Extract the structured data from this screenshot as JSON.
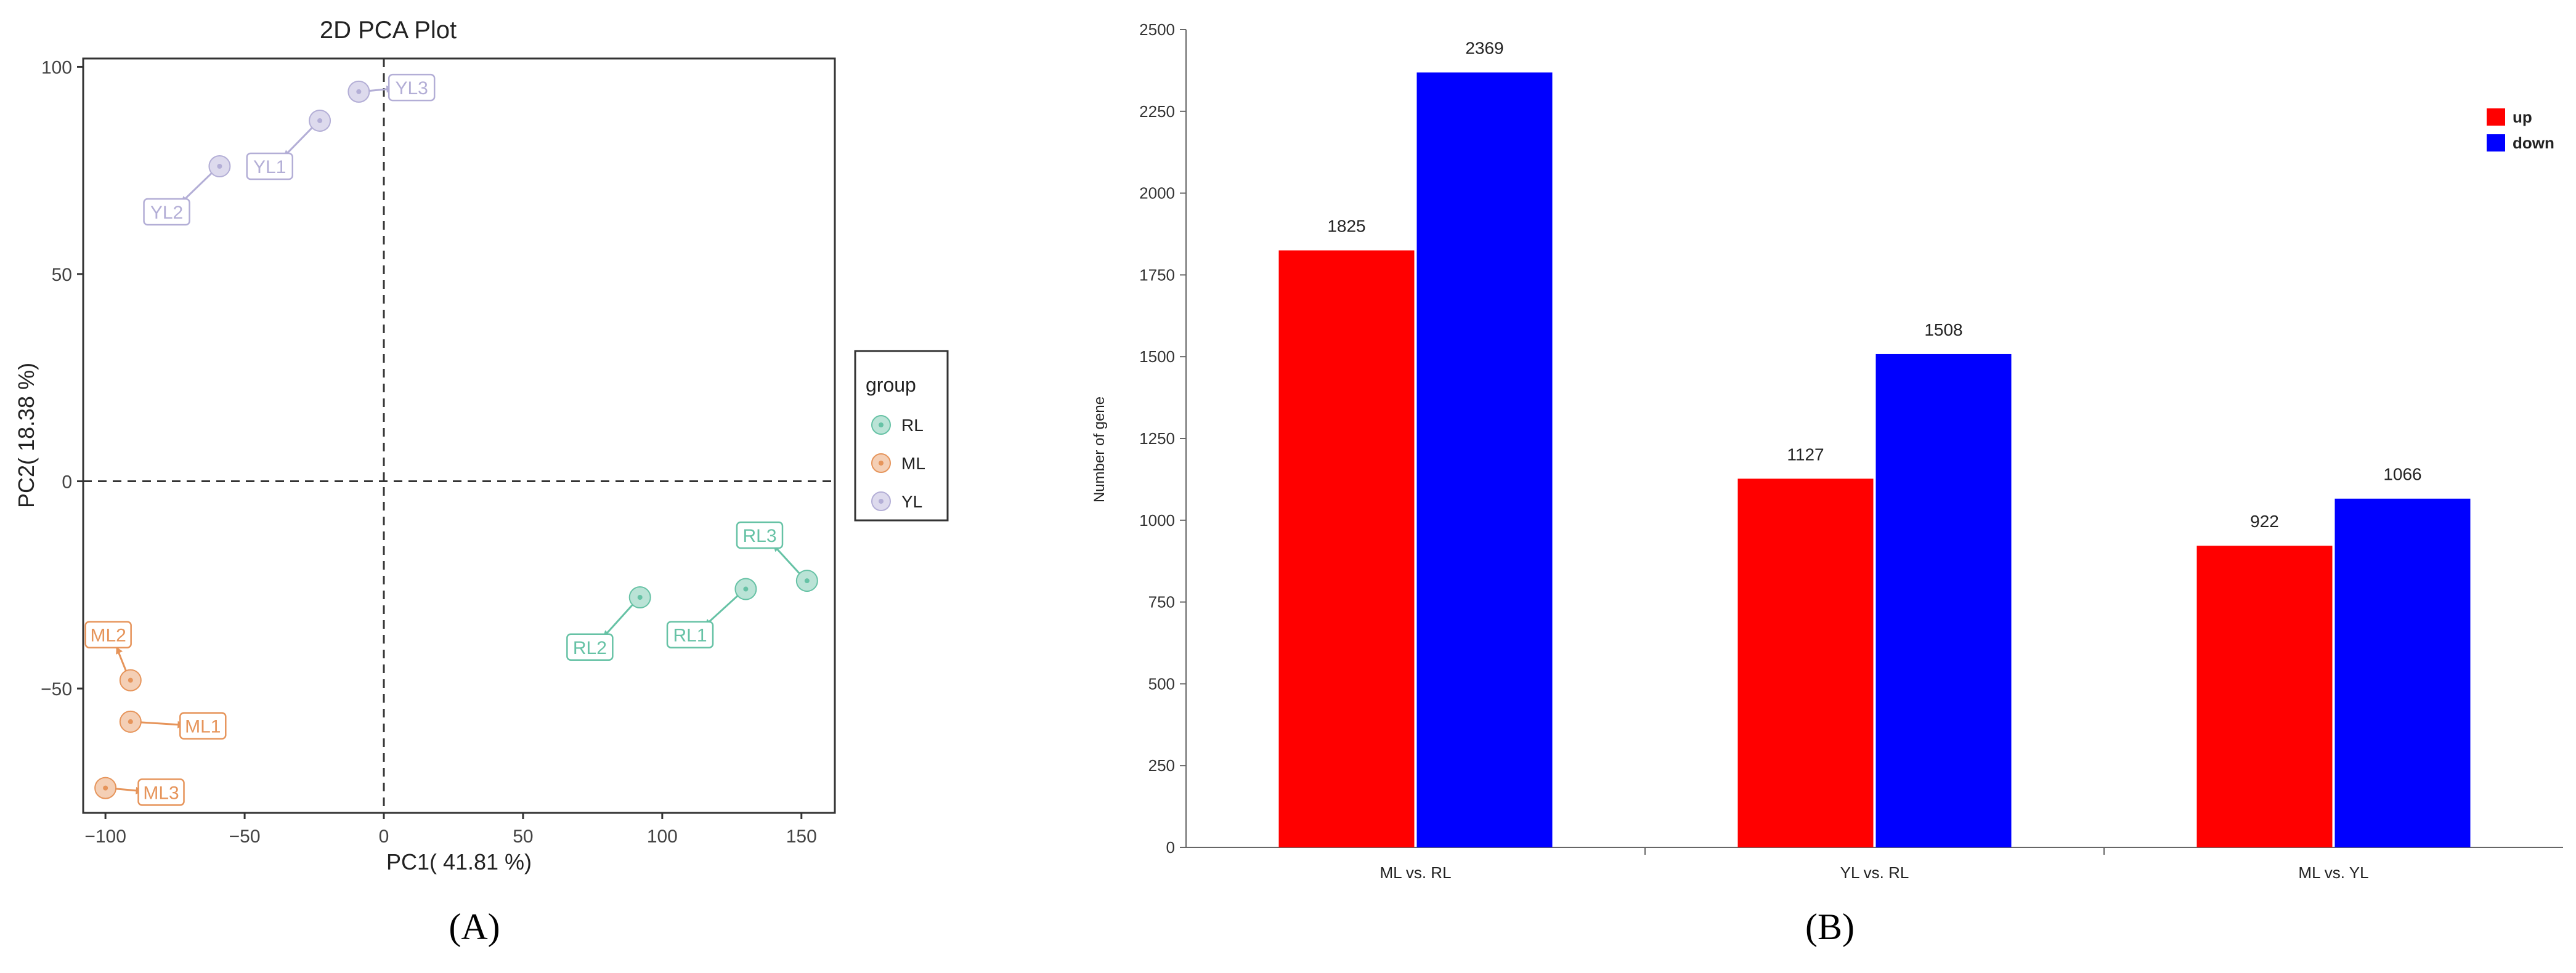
{
  "charts": [
    {
      "panel_label": "(A)",
      "chart_data": {
        "type": "scatter",
        "title": "2D PCA Plot",
        "xlabel": "PC1( 41.81 %)",
        "ylabel": "PC2( 18.38 %)",
        "xlim": [
          -108,
          162
        ],
        "ylim": [
          -80,
          102
        ],
        "xticks": [
          -100,
          -50,
          0,
          50,
          100,
          150
        ],
        "yticks": [
          -50,
          0,
          50,
          100
        ],
        "reference_lines": {
          "x": 0,
          "y": 0,
          "style": "dashed"
        },
        "legend": {
          "title": "group",
          "position": "right"
        },
        "series": [
          {
            "name": "RL",
            "color": "#66c2a5",
            "points": [
              {
                "label": "RL1",
                "x": 130,
                "y": -26,
                "label_x": 110,
                "label_y": -37
              },
              {
                "label": "RL2",
                "x": 92,
                "y": -28,
                "label_x": 74,
                "label_y": -40
              },
              {
                "label": "RL3",
                "x": 152,
                "y": -24,
                "label_x": 135,
                "label_y": -13
              }
            ]
          },
          {
            "name": "ML",
            "color": "#e6945a",
            "points": [
              {
                "label": "ML1",
                "x": -91,
                "y": -58,
                "label_x": -65,
                "label_y": -59
              },
              {
                "label": "ML2",
                "x": -91,
                "y": -48,
                "label_x": -99,
                "label_y": -37
              },
              {
                "label": "ML3",
                "x": -100,
                "y": -74,
                "label_x": -80,
                "label_y": -75
              }
            ]
          },
          {
            "name": "YL",
            "color": "#b3aed6",
            "points": [
              {
                "label": "YL1",
                "x": -23,
                "y": 87,
                "label_x": -41,
                "label_y": 76
              },
              {
                "label": "YL2",
                "x": -59,
                "y": 76,
                "label_x": -78,
                "label_y": 65
              },
              {
                "label": "YL3",
                "x": -9,
                "y": 94,
                "label_x": 10,
                "label_y": 95
              }
            ]
          }
        ]
      }
    },
    {
      "panel_label": "(B)",
      "chart_data": {
        "type": "bar",
        "title": "",
        "xlabel": "",
        "ylabel": "Number of gene",
        "ylim": [
          0,
          2500
        ],
        "yticks": [
          0,
          250,
          500,
          750,
          1000,
          1250,
          1500,
          1750,
          2000,
          2250,
          2500
        ],
        "categories": [
          "ML vs. RL",
          "YL vs. RL",
          "ML vs. YL"
        ],
        "legend": {
          "position": "top-right"
        },
        "series": [
          {
            "name": "up",
            "color": "#ff0000",
            "values": [
              1825,
              1127,
              922
            ]
          },
          {
            "name": "down",
            "color": "#0000ff",
            "values": [
              2369,
              1508,
              1066
            ]
          }
        ]
      }
    }
  ]
}
